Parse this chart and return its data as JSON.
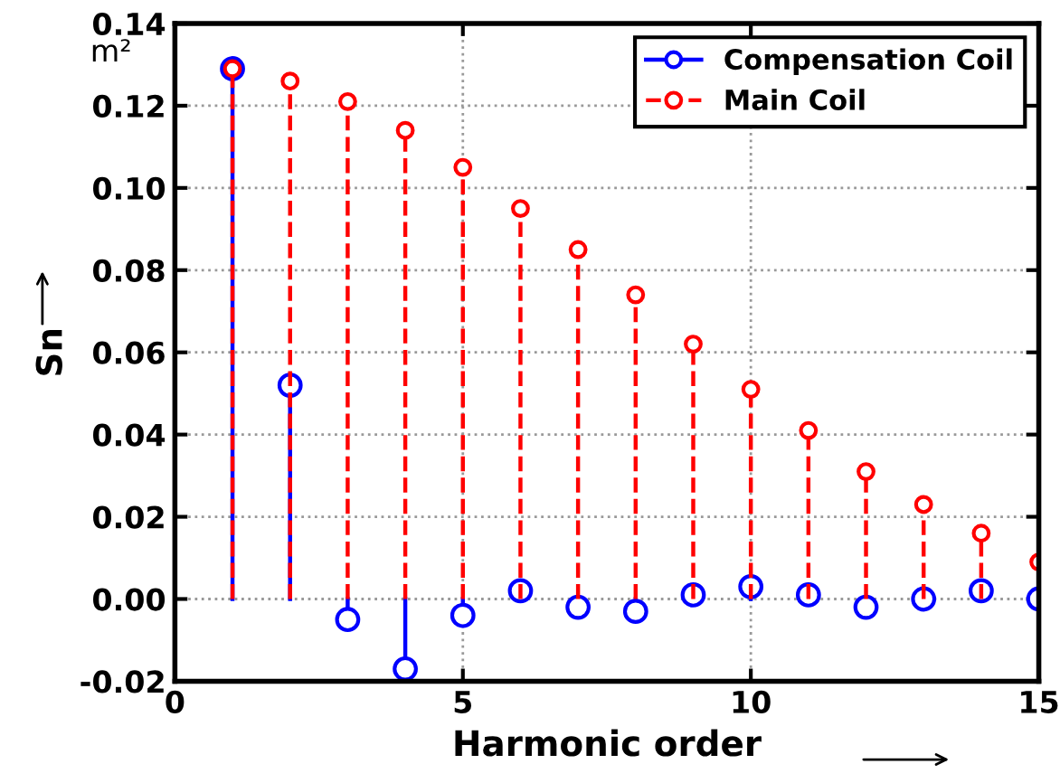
{
  "chart_data": {
    "type": "lollipop",
    "xlabel": "Harmonic order",
    "ylabel": "Sn",
    "annotations": [
      "m²"
    ],
    "x": [
      1,
      2,
      3,
      4,
      5,
      6,
      7,
      8,
      9,
      10,
      11,
      12,
      13,
      14,
      15
    ],
    "series": [
      {
        "name": "Compensation Coil",
        "color": "#0000ff",
        "line_style": "solid",
        "values": [
          0.129,
          0.052,
          -0.005,
          -0.017,
          -0.004,
          0.002,
          -0.002,
          -0.003,
          0.001,
          0.003,
          0.001,
          -0.002,
          0.0,
          0.002,
          0.0
        ]
      },
      {
        "name": "Main Coil",
        "color": "#ff0000",
        "line_style": "dashed",
        "values": [
          0.129,
          0.126,
          0.121,
          0.114,
          0.105,
          0.095,
          0.085,
          0.074,
          0.062,
          0.051,
          0.041,
          0.031,
          0.023,
          0.016,
          0.009
        ]
      }
    ],
    "xlim": [
      0,
      15
    ],
    "xticks": [
      0,
      5,
      10,
      15
    ],
    "ylim": [
      -0.02,
      0.14
    ],
    "yticks": [
      {
        "value": -0.02,
        "label": "-0.02"
      },
      {
        "value": 0,
        "label": "0.00"
      },
      {
        "value": 0.02,
        "label": "0.02"
      },
      {
        "value": 0.04,
        "label": "0.04"
      },
      {
        "value": 0.06,
        "label": "0.06"
      },
      {
        "value": 0.08,
        "label": "0.08"
      },
      {
        "value": 0.1,
        "label": "0.10"
      },
      {
        "value": 0.12,
        "label": "0.12"
      },
      {
        "value": 0.14,
        "label": "0.14"
      }
    ],
    "grid": true,
    "legend": "top right",
    "marker": "circle"
  }
}
